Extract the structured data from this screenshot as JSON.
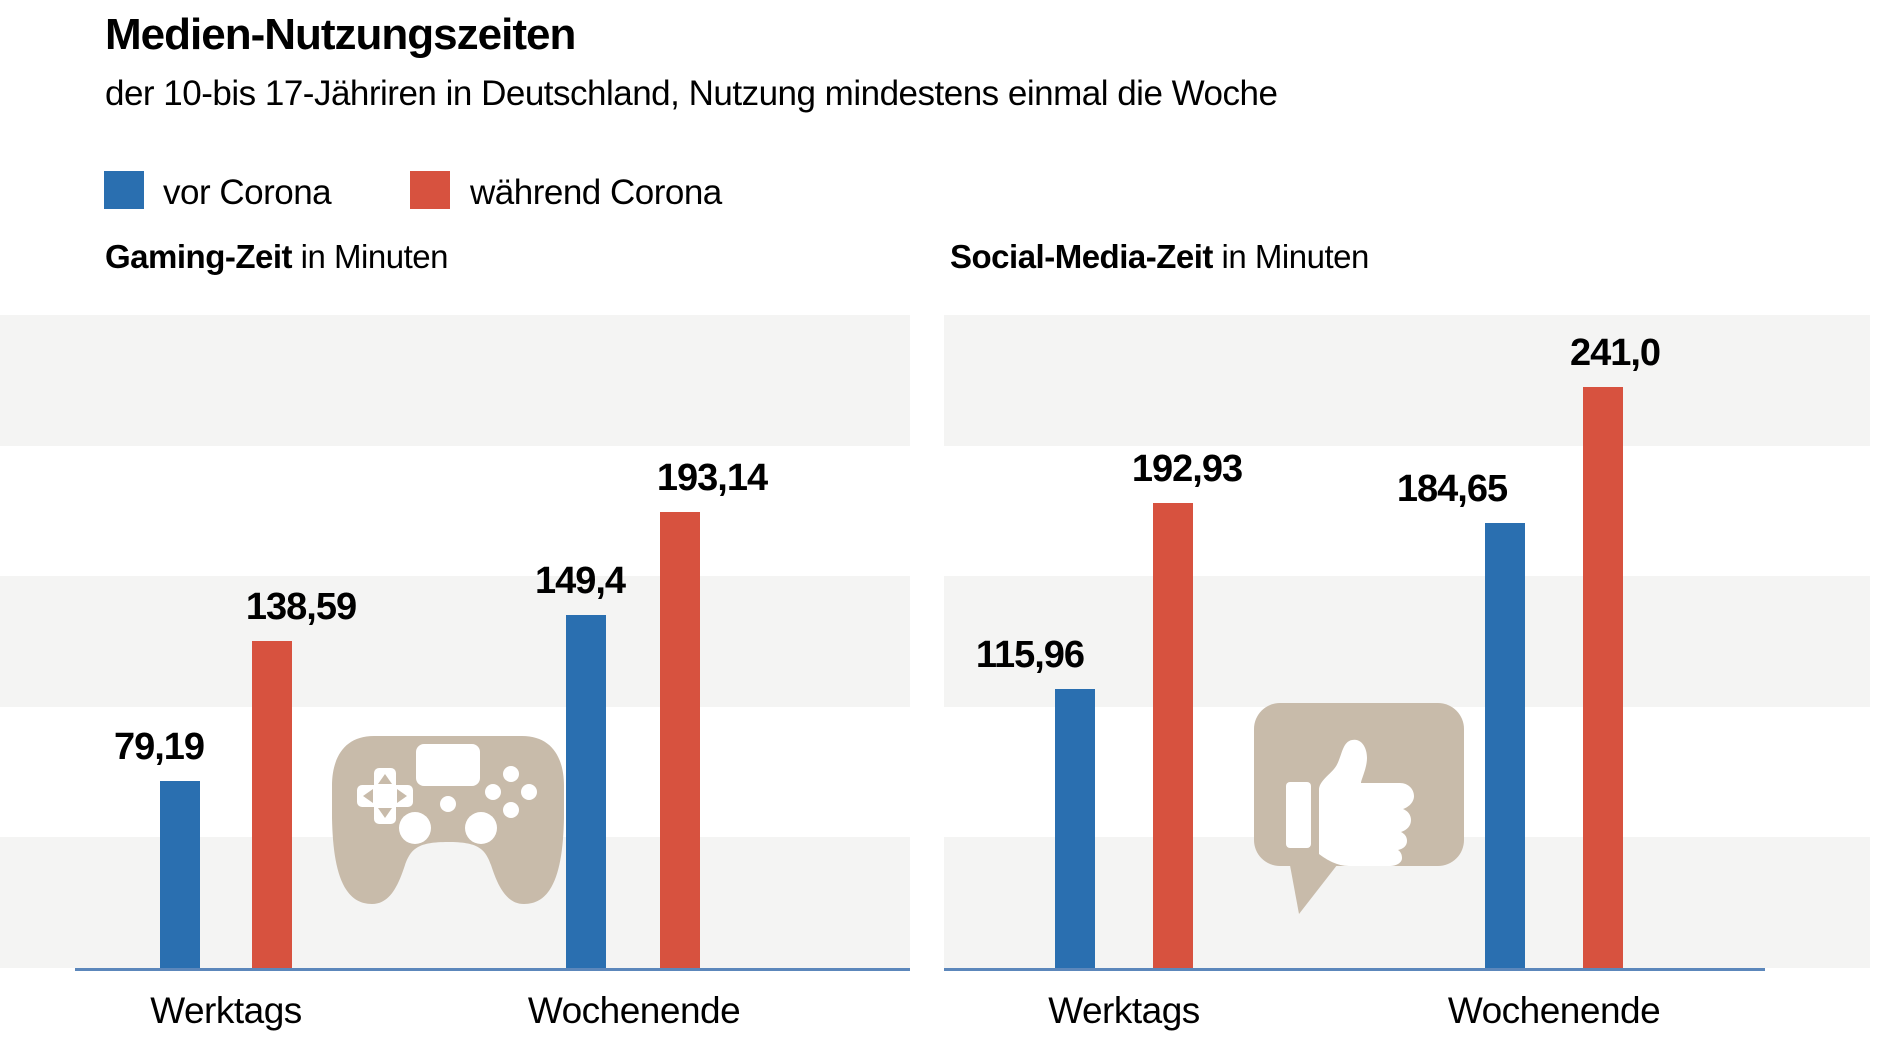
{
  "header": {
    "title": "Medien-Nutzungszeiten",
    "subtitle": "der 10-bis 17-Jähriren in Deutschland, Nutzung mindestens einmal die Woche"
  },
  "legend": [
    {
      "label": "vor Corona",
      "color": "#2a6fb0"
    },
    {
      "label": "während Corona",
      "color": "#d7523f"
    }
  ],
  "colors": {
    "stripe_gray": "#f4f4f3",
    "axis_line": "#5c87bb",
    "icon_beige": "#c8bbaa",
    "text": "#000000"
  },
  "chart_data": {
    "type": "bar",
    "title": "Medien-Nutzungszeiten",
    "subtitle": "der 10-bis 17-Jähriren in Deutschland, Nutzung mindestens einmal die Woche",
    "unit": "Minuten",
    "legend_position": "top-left",
    "grid": "decorative alternating horizontal stripes, no tick labels",
    "charts": [
      {
        "title": "Gaming-Zeit in Minuten",
        "title_bold": "Gaming-Zeit",
        "title_rest": " in Minuten",
        "icon": "gamepad-icon",
        "categories": [
          "Werktags",
          "Wochenende"
        ],
        "series": [
          {
            "name": "vor Corona",
            "values": [
              79.19,
              149.4
            ],
            "labels": [
              "79,19",
              "149,4"
            ]
          },
          {
            "name": "während Corona",
            "values": [
              138.59,
              193.14
            ],
            "labels": [
              "138,59",
              "193,14"
            ]
          }
        ],
        "ylim": [
          0,
          277
        ]
      },
      {
        "title": "Social-Media-Zeit in Minuten",
        "title_bold": "Social-Media-Zeit",
        "title_rest": " in Minuten",
        "icon": "thumbs-up-bubble-icon",
        "categories": [
          "Werktags",
          "Wochenende"
        ],
        "series": [
          {
            "name": "vor Corona",
            "values": [
              115.96,
              184.65
            ],
            "labels": [
              "115,96",
              "184,65"
            ]
          },
          {
            "name": "während Corona",
            "values": [
              192.93,
              241.0
            ],
            "labels": [
              "192,93",
              "241,0"
            ]
          }
        ],
        "ylim": [
          0,
          271
        ]
      }
    ]
  }
}
